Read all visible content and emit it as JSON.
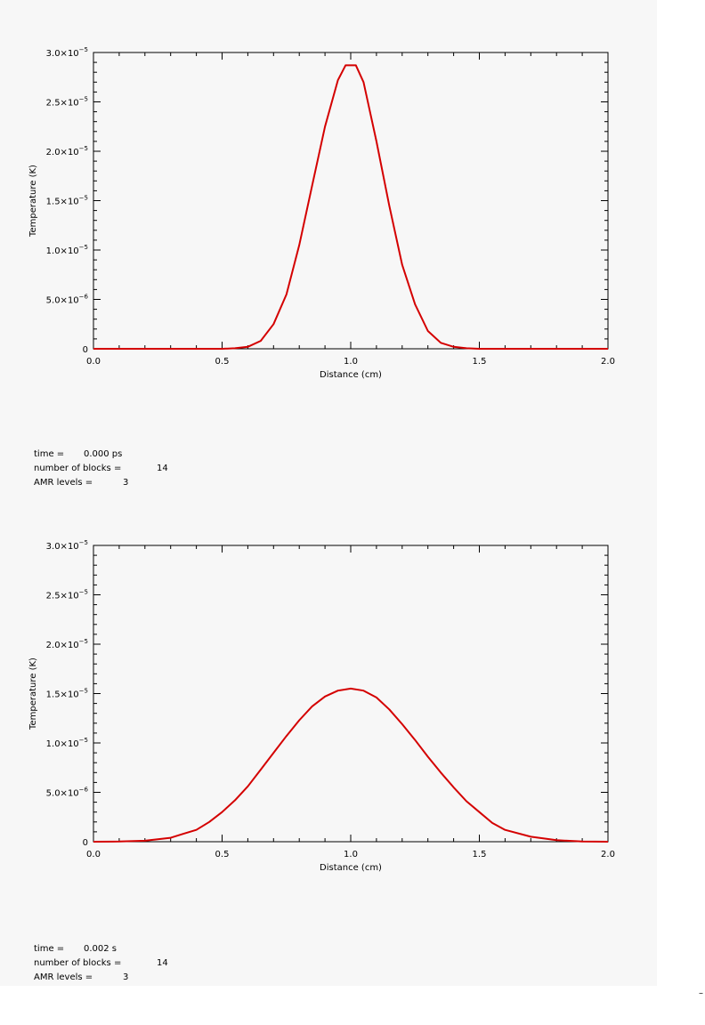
{
  "chart_data": [
    {
      "type": "line",
      "xlabel": "Distance (cm)",
      "ylabel": "Temperature (K)",
      "xlim": [
        0.0,
        2.0
      ],
      "ylim": [
        0,
        3e-05
      ],
      "grid": false,
      "x_ticks": [
        {
          "v": 0.0,
          "label": "0.0"
        },
        {
          "v": 0.5,
          "label": "0.5"
        },
        {
          "v": 1.0,
          "label": "1.0"
        },
        {
          "v": 1.5,
          "label": "1.5"
        },
        {
          "v": 2.0,
          "label": "2.0"
        }
      ],
      "y_ticks": [
        {
          "v": 0,
          "m": "0",
          "e": ""
        },
        {
          "v": 5e-06,
          "m": "5.0×10",
          "e": "−6"
        },
        {
          "v": 1e-05,
          "m": "1.0×10",
          "e": "−5"
        },
        {
          "v": 1.5e-05,
          "m": "1.5×10",
          "e": "−5"
        },
        {
          "v": 2e-05,
          "m": "2.0×10",
          "e": "−5"
        },
        {
          "v": 2.5e-05,
          "m": "2.5×10",
          "e": "−5"
        },
        {
          "v": 3e-05,
          "m": "3.0×10",
          "e": "−5"
        }
      ],
      "line_color": "#d40000",
      "series": [
        {
          "x": [
            0.0,
            0.5,
            0.55,
            0.6,
            0.65,
            0.7,
            0.75,
            0.8,
            0.85,
            0.9,
            0.95,
            0.98,
            1.02,
            1.05,
            1.1,
            1.15,
            1.2,
            1.25,
            1.3,
            1.35,
            1.4,
            1.45,
            1.5,
            2.0
          ],
          "y": [
            0,
            0,
            5e-08,
            2e-07,
            8e-07,
            2.5e-06,
            5.5e-06,
            1.05e-05,
            1.65e-05,
            2.25e-05,
            2.72e-05,
            2.87e-05,
            2.87e-05,
            2.7e-05,
            2.1e-05,
            1.45e-05,
            8.5e-06,
            4.5e-06,
            1.8e-06,
            6e-07,
            2e-07,
            5e-08,
            0,
            0
          ]
        }
      ],
      "info": {
        "time_label": "time =",
        "time_value": "0.000 ps",
        "blocks_label": "number of blocks =",
        "blocks_value": "14",
        "levels_label": "AMR levels =",
        "levels_value": "3"
      }
    },
    {
      "type": "line",
      "xlabel": "Distance (cm)",
      "ylabel": "Temperature (K)",
      "xlim": [
        0.0,
        2.0
      ],
      "ylim": [
        0,
        3e-05
      ],
      "grid": false,
      "x_ticks": [
        {
          "v": 0.0,
          "label": "0.0"
        },
        {
          "v": 0.5,
          "label": "0.5"
        },
        {
          "v": 1.0,
          "label": "1.0"
        },
        {
          "v": 1.5,
          "label": "1.5"
        },
        {
          "v": 2.0,
          "label": "2.0"
        }
      ],
      "y_ticks": [
        {
          "v": 0,
          "m": "0",
          "e": ""
        },
        {
          "v": 5e-06,
          "m": "5.0×10",
          "e": "−6"
        },
        {
          "v": 1e-05,
          "m": "1.0×10",
          "e": "−5"
        },
        {
          "v": 1.5e-05,
          "m": "1.5×10",
          "e": "−5"
        },
        {
          "v": 2e-05,
          "m": "2.0×10",
          "e": "−5"
        },
        {
          "v": 2.5e-05,
          "m": "2.5×10",
          "e": "−5"
        },
        {
          "v": 3e-05,
          "m": "3.0×10",
          "e": "−5"
        }
      ],
      "line_color": "#d40000",
      "series": [
        {
          "x": [
            0.0,
            0.1,
            0.2,
            0.3,
            0.35,
            0.4,
            0.45,
            0.5,
            0.55,
            0.6,
            0.65,
            0.7,
            0.75,
            0.8,
            0.85,
            0.9,
            0.95,
            1.0,
            1.05,
            1.1,
            1.15,
            1.2,
            1.25,
            1.3,
            1.35,
            1.4,
            1.45,
            1.5,
            1.55,
            1.6,
            1.7,
            1.8,
            1.9,
            2.0
          ],
          "y": [
            0,
            2e-08,
            1e-07,
            4e-07,
            8e-07,
            1.2e-06,
            2e-06,
            3e-06,
            4.2e-06,
            5.6e-06,
            7.3e-06,
            9e-06,
            1.07e-05,
            1.23e-05,
            1.37e-05,
            1.47e-05,
            1.53e-05,
            1.55e-05,
            1.53e-05,
            1.46e-05,
            1.34e-05,
            1.19e-05,
            1.03e-05,
            8.6e-06,
            7e-06,
            5.5e-06,
            4.1e-06,
            3e-06,
            1.9e-06,
            1.2e-06,
            5e-07,
            1.5e-07,
            3e-08,
            0
          ]
        }
      ],
      "info": {
        "time_label": "time =",
        "time_value": "0.002 s",
        "blocks_label": "number of blocks =",
        "blocks_value": "14",
        "levels_label": "AMR levels =",
        "levels_value": "3"
      }
    }
  ],
  "corner_mark": "–"
}
